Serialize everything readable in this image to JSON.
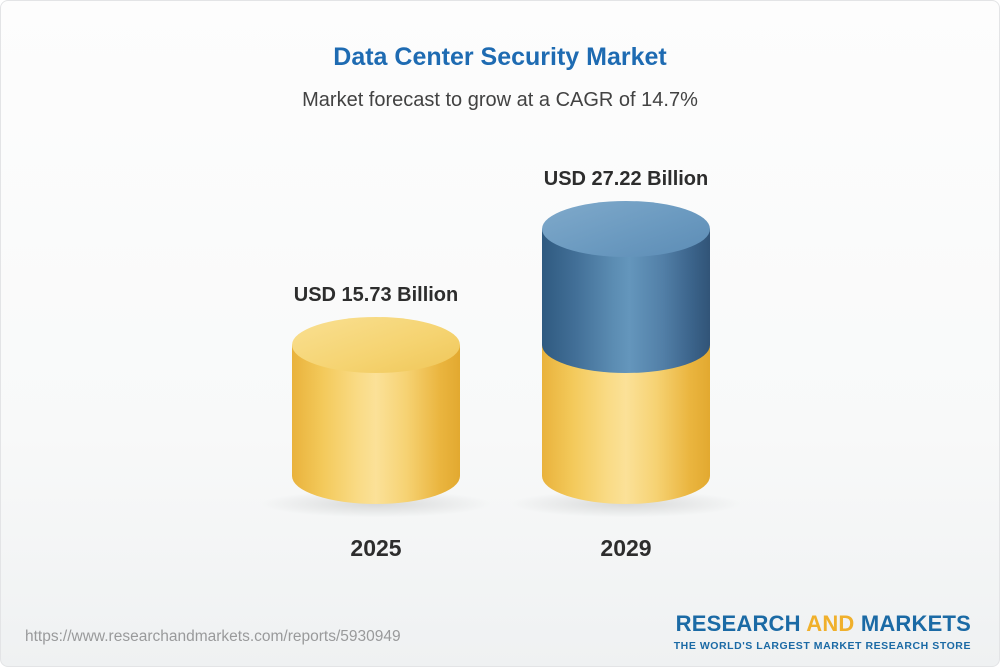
{
  "header": {
    "title": "Data Center Security Market",
    "subtitle": "Market forecast to grow at a CAGR of 14.7%"
  },
  "chart_data": {
    "type": "bar",
    "title": "Data Center Security Market",
    "subtitle": "Market forecast to grow at a CAGR of 14.7%",
    "unit": "USD Billion",
    "cagr": "14.7%",
    "categories": [
      "2025",
      "2029"
    ],
    "values": [
      15.73,
      27.22
    ],
    "ylim": [
      0,
      30
    ],
    "legend": "none",
    "grid": false,
    "bars": [
      {
        "category": "2025",
        "value": 15.73,
        "label": "USD 15.73 Billion",
        "color": "#f2c94e"
      },
      {
        "category": "2029",
        "value": 27.22,
        "label": "USD 27.22 Billion",
        "base_value": 15.73,
        "base_color": "#f2c94e",
        "top_color": "#4a7ca7"
      }
    ]
  },
  "footer": {
    "url": "https://www.researchandmarkets.com/reports/5930949",
    "logo": {
      "line1_part1": "RESEARCH",
      "line1_part2": "AND",
      "line1_part3": "MARKETS",
      "tagline": "THE WORLD'S LARGEST MARKET RESEARCH STORE"
    }
  },
  "colors": {
    "title_blue": "#1e6bb2",
    "bar_yellow": "#f2c94e",
    "bar_blue": "#4a7ca7",
    "logo_blue": "#1b6aa5",
    "logo_yellow": "#f0b02c",
    "text_dark": "#2d2d2d",
    "url_gray": "#999a9b"
  }
}
